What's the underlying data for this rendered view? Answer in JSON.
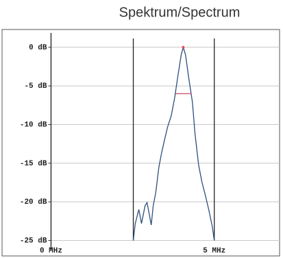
{
  "chart_data": {
    "type": "line",
    "title": "Spektrum/Spectrum",
    "series": [
      {
        "color": "#2c4f7c",
        "x": [
          2.52,
          2.58,
          2.69,
          2.77,
          2.88,
          2.94,
          3.0,
          3.07,
          3.13,
          3.21,
          3.3,
          3.38,
          3.47,
          3.57,
          3.68,
          3.78,
          3.89,
          3.99,
          4.05,
          4.12,
          4.22,
          4.33,
          4.41,
          4.52,
          4.62,
          4.73,
          4.83,
          4.94,
          5.0
        ],
        "values": [
          -25,
          -22.8,
          -21.0,
          -22.8,
          -20.5,
          -20.1,
          -21.4,
          -23.0,
          -20.5,
          -18.75,
          -15.6,
          -13.8,
          -12.1,
          -10.3,
          -8.9,
          -6.7,
          -3.6,
          -0.9,
          0,
          -1.0,
          -4.0,
          -7.1,
          -11.2,
          -15.2,
          -17.4,
          -19.2,
          -21.0,
          -23.2,
          -25
        ]
      }
    ],
    "peak": {
      "x": 4.05,
      "y": 0,
      "color": "#e0506a"
    },
    "bandwidth_marker": {
      "x": [
        3.82,
        4.31
      ],
      "y": -6,
      "color": "#d0607a"
    },
    "markers_x": [
      2.52,
      5.0
    ],
    "xlim": [
      -1.5,
      7.0
    ],
    "ylim": [
      -27,
      2.3
    ],
    "xticks": [
      {
        "value": 0,
        "label": "0 MHz"
      },
      {
        "value": 5,
        "label": "5 MHz"
      }
    ],
    "yticks": [
      {
        "value": 0,
        "label": "0 dB"
      },
      {
        "value": -5,
        "label": "-5 dB"
      },
      {
        "value": -10,
        "label": "-10 dB"
      },
      {
        "value": -15,
        "label": "-15 dB"
      },
      {
        "value": -20,
        "label": "-20 dB"
      },
      {
        "value": -25,
        "label": "-25 dB"
      }
    ],
    "grid": true
  }
}
